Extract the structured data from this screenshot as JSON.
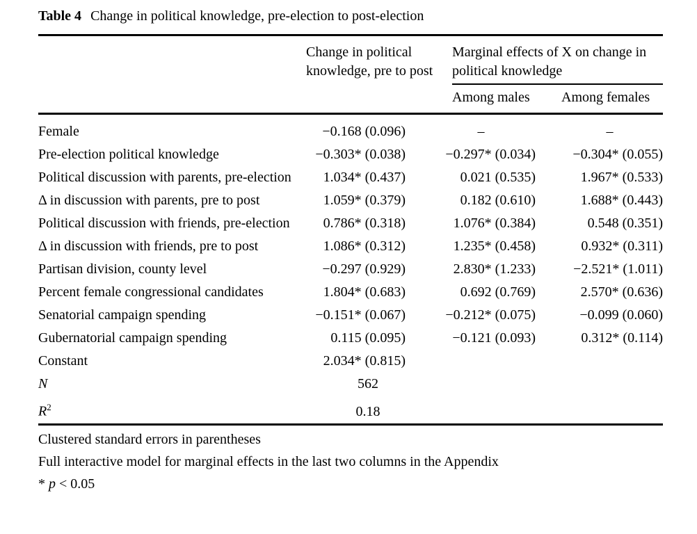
{
  "title": {
    "label": "Table 4",
    "caption": "Change in political knowledge, pre-election to post-election"
  },
  "header": {
    "change_col": "Change in political knowledge, pre to post",
    "marginal_group": "Marginal effects of X on change in political knowledge",
    "among_males": "Among males",
    "among_females": "Among females"
  },
  "rows": [
    {
      "label": "Female",
      "c1": "−0.168 (0.096)",
      "c2": "–",
      "c3": "–"
    },
    {
      "label": "Pre-election political knowledge",
      "c1": "−0.303* (0.038)",
      "c2": "−0.297* (0.034)",
      "c3": "−0.304* (0.055)"
    },
    {
      "label": "Political discussion with parents, pre-election",
      "c1": "1.034* (0.437)",
      "c2": "0.021 (0.535)",
      "c3": "1.967* (0.533)"
    },
    {
      "label": "Δ in discussion with parents, pre to post",
      "c1": "1.059* (0.379)",
      "c2": "0.182 (0.610)",
      "c3": "1.688* (0.443)"
    },
    {
      "label": "Political discussion with friends, pre-election",
      "c1": "0.786* (0.318)",
      "c2": "1.076* (0.384)",
      "c3": "0.548 (0.351)"
    },
    {
      "label": "Δ in discussion with friends, pre to post",
      "c1": "1.086* (0.312)",
      "c2": "1.235* (0.458)",
      "c3": "0.932* (0.311)"
    },
    {
      "label": "Partisan division, county level",
      "c1": "−0.297 (0.929)",
      "c2": "2.830* (1.233)",
      "c3": "−2.521* (1.011)"
    },
    {
      "label": "Percent female congressional candidates",
      "c1": "1.804* (0.683)",
      "c2": "0.692 (0.769)",
      "c3": "2.570* (0.636)"
    },
    {
      "label": "Senatorial campaign spending",
      "c1": "−0.151* (0.067)",
      "c2": "−0.212* (0.075)",
      "c3": "−0.099 (0.060)"
    },
    {
      "label": "Gubernatorial campaign spending",
      "c1": "0.115 (0.095)",
      "c2": "−0.121 (0.093)",
      "c3": "0.312* (0.114)"
    },
    {
      "label": "Constant",
      "c1": "2.034* (0.815)",
      "c2": "",
      "c3": ""
    }
  ],
  "stats": {
    "n_label": "N",
    "n_value": "562",
    "r2_label": "R",
    "r2_sup": "2",
    "r2_value": "0.18"
  },
  "footnotes": {
    "note1": "Clustered standard errors in parentheses",
    "note2": "Full interactive model for marginal effects in the last two columns in the Appendix",
    "sig_star": "* ",
    "sig_var": "p",
    "sig_rest": " < 0.05"
  }
}
